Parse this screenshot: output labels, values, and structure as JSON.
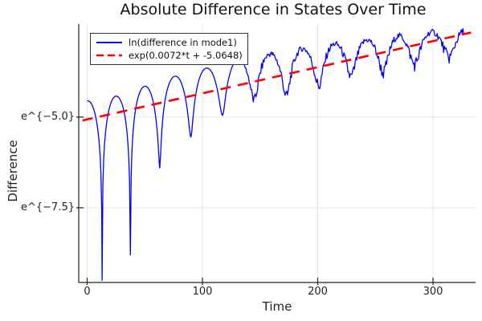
{
  "window": {
    "background": "#ffffff"
  },
  "chart_data": {
    "type": "line",
    "title": "Absolute Difference in States Over Time",
    "xlabel": "Time",
    "ylabel": "Difference",
    "x_range": [
      -7.3,
      336.9
    ],
    "y_range_ln": [
      -9.56,
      -2.435
    ],
    "grid": true,
    "grid_color": "#e5e5e5",
    "axis_color": "#222222",
    "x_ticks": [
      {
        "value": 0,
        "label": "0"
      },
      {
        "value": 100,
        "label": "100"
      },
      {
        "value": 200,
        "label": "200"
      },
      {
        "value": 300,
        "label": "300"
      }
    ],
    "y_ticks": [
      {
        "value": -5.0,
        "label": "e^{−5.0}"
      },
      {
        "value": -7.5,
        "label": "e^{−7.5}"
      }
    ],
    "legend": {
      "position": "top-left",
      "entries": [
        {
          "label": "ln(difference in mode1)",
          "color": "#0000ff",
          "style": "solid"
        },
        {
          "label": "exp(0.0072*t + -5.0648)",
          "color": "#ff0000",
          "style": "dashed"
        }
      ]
    },
    "series": [
      {
        "name": "ln(difference in mode1)",
        "color": "#0000ff",
        "width": 1.3,
        "type": "oscillating-log",
        "t_start": 0,
        "t_end": 327,
        "step": 0.7,
        "cusps_t_v": [
          [
            -12,
            -9.0
          ],
          [
            13,
            -9.5
          ],
          [
            37.5,
            -8.8
          ],
          [
            63,
            -6.4
          ],
          [
            90,
            -5.55
          ],
          [
            117.5,
            -4.95
          ],
          [
            145,
            -4.55
          ],
          [
            173,
            -4.45
          ],
          [
            201,
            -4.15
          ],
          [
            229,
            -3.9
          ],
          [
            257,
            -3.78
          ],
          [
            284,
            -3.55
          ],
          [
            314,
            -3.35
          ],
          [
            342,
            -3.4
          ]
        ],
        "segment_peaks_v": [
          -4.55,
          -4.42,
          -4.15,
          -3.88,
          -3.67,
          -3.45,
          -3.3,
          -3.16,
          -3.05,
          -2.95,
          -2.85,
          -2.77,
          -2.73
        ],
        "noise": {
          "onset_t": 128,
          "ramp_per_t": 0.004,
          "max": 0.08,
          "dip_boost": 1.4
        }
      },
      {
        "name": "exp(0.0072*t + -5.0648)",
        "color": "#ff0000",
        "width": 2.6,
        "type": "linear-in-log",
        "slope": 0.0072,
        "intercept": -5.0648,
        "t_start": -4,
        "t_end": 333,
        "dash": "13 9"
      }
    ]
  }
}
